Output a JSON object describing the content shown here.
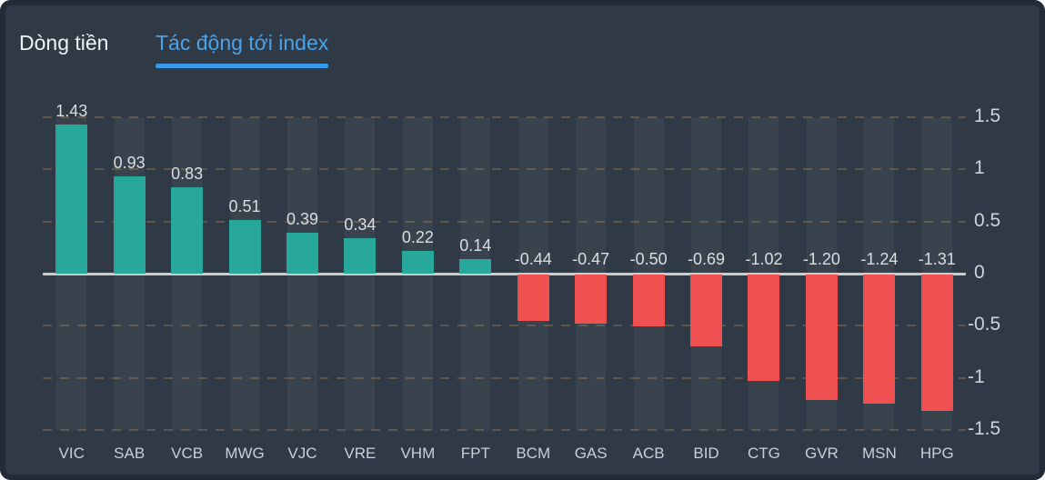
{
  "tabs": [
    {
      "label": "Dòng tiền",
      "active": false
    },
    {
      "label": "Tác động tới index",
      "active": true
    }
  ],
  "colors": {
    "panel_background": "#2f3a46",
    "panel_frame": "#222c38",
    "column_band": "#38434e",
    "active_tab_text": "#4aa2e9",
    "active_tab_underline": "#3898ea",
    "inactive_tab_text": "#f0f3f6",
    "positive_bar": "#28a89b",
    "negative_bar": "#ef5151",
    "zero_axis_line": "#c8cdd2",
    "grid_dash": "#c89650",
    "value_label_text": "#dadde1",
    "axis_tick_text": "#ced3d8",
    "category_label_text": "#c9cfd5"
  },
  "chart_data": {
    "type": "bar",
    "title": "Tác động tới index",
    "categories": [
      "VIC",
      "SAB",
      "VCB",
      "MWG",
      "VJC",
      "VRE",
      "VHM",
      "FPT",
      "BCM",
      "GAS",
      "ACB",
      "BID",
      "CTG",
      "GVR",
      "MSN",
      "HPG"
    ],
    "values": [
      1.43,
      0.93,
      0.83,
      0.51,
      0.39,
      0.34,
      0.22,
      0.14,
      -0.44,
      -0.47,
      -0.5,
      -0.69,
      -1.02,
      -1.2,
      -1.24,
      -1.31
    ],
    "value_labels": [
      "1.43",
      "0.93",
      "0.83",
      "0.51",
      "0.39",
      "0.34",
      "0.22",
      "0.14",
      "-0.44",
      "-0.47",
      "-0.50",
      "-0.69",
      "-1.02",
      "-1.20",
      "-1.24",
      "-1.31"
    ],
    "xlabel": "",
    "ylabel": "",
    "ylim": [
      -1.5,
      1.5
    ],
    "yticks": [
      1.5,
      1,
      0.5,
      0,
      -0.5,
      -1,
      -1.5
    ],
    "ytick_labels": [
      "1.5",
      "1",
      "0.5",
      "0",
      "-0.5",
      "-1",
      "-1.5"
    ],
    "yaxis_position": "right",
    "grid": "horizontal-dashed",
    "legend_position": "none"
  }
}
